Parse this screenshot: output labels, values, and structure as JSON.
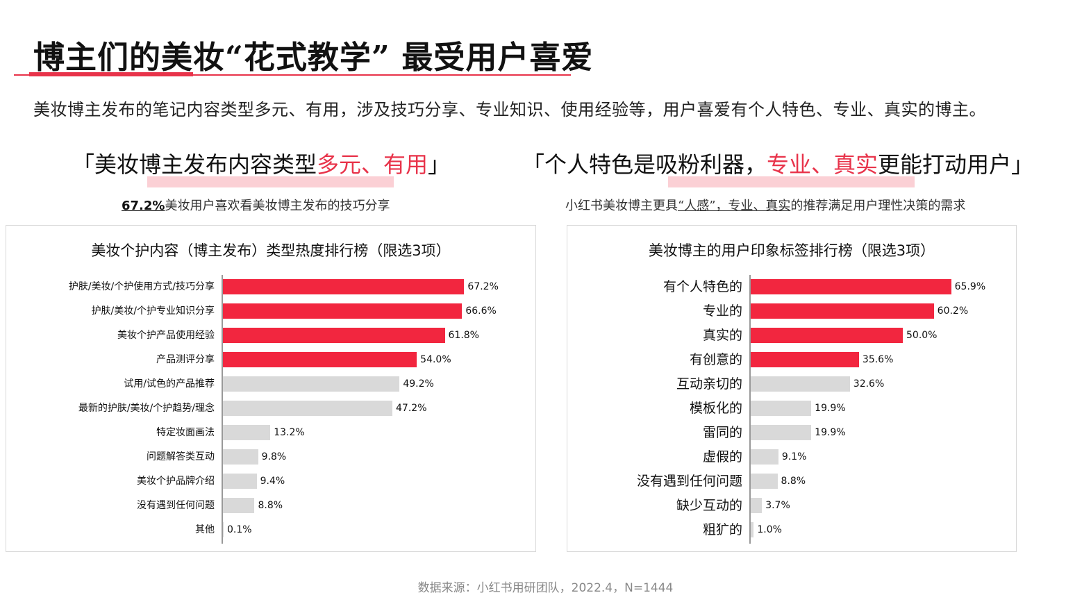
{
  "header": {
    "title": "博主们的美妆“花式教学” 最受用户喜爱",
    "subtitle": "美妆博主发布的笔记内容类型多元、有用，涉及技巧分享、专业知识、使用经验等，用户喜爱有个人特色、专业、真实的博主。"
  },
  "colors": {
    "accent": "#f2263f",
    "highlight_bg": "#fbd0d5",
    "bar_gray": "#d9d9d9",
    "title_line": "#e8334a"
  },
  "left_section": {
    "heading_pre": "「美妆博主发布内容类型",
    "heading_hl": "多元、有用",
    "heading_post": "」",
    "sub_bold": "67.2%",
    "sub_text": "美妆用户喜欢看美妆博主发布的技巧分享"
  },
  "right_section": {
    "heading_pre": "「个人特色是吸粉利器，",
    "heading_hl": "专业、真实",
    "heading_post": "更能打动用户」",
    "sub_pre": "小红书美妆博主更具",
    "sub_underlined": "“人感”，专业、真实",
    "sub_post": "的推荐满足用户理性决策的需求"
  },
  "footer": {
    "source": "数据来源：小红书用研团队，2022.4，N=1444"
  },
  "chart_data": [
    {
      "type": "bar",
      "orientation": "horizontal",
      "title": "美妆个护内容（博主发布）类型热度排行榜（限选3项）",
      "xlabel": "",
      "ylabel": "",
      "unit": "%",
      "categories": [
        "护肤/美妆/个护使用方式/技巧分享",
        "护肤/美妆/个护专业知识分享",
        "美妆个护产品使用经验",
        "产品测评分享",
        "试用/试色的产品推荐",
        "最新的护肤/美妆/个护趋势/理念",
        "特定妆面画法",
        "问题解答类互动",
        "美妆个护品牌介绍",
        "没有遇到任何问题",
        "其他"
      ],
      "values": [
        67.2,
        66.6,
        61.8,
        54.0,
        49.2,
        47.2,
        13.2,
        9.8,
        9.4,
        8.8,
        0.1
      ],
      "labels": [
        "67.2%",
        "66.6%",
        "61.8%",
        "54.0%",
        "49.2%",
        "47.2%",
        "13.2%",
        "9.8%",
        "9.4%",
        "8.8%",
        "0.1%"
      ],
      "highlighted": [
        true,
        true,
        true,
        true,
        false,
        false,
        false,
        false,
        false,
        false,
        false
      ],
      "grid": false,
      "legend": "none"
    },
    {
      "type": "bar",
      "orientation": "horizontal",
      "title": "美妆博主的用户印象标签排行榜（限选3项）",
      "xlabel": "",
      "ylabel": "",
      "unit": "%",
      "categories": [
        "有个人特色的",
        "专业的",
        "真实的",
        "有创意的",
        "互动亲切的",
        "模板化的",
        "雷同的",
        "虚假的",
        "没有遇到任何问题",
        "缺少互动的",
        "粗犷的"
      ],
      "values": [
        65.9,
        60.2,
        50.0,
        35.6,
        32.6,
        19.9,
        19.9,
        9.1,
        8.8,
        3.7,
        1.0
      ],
      "labels": [
        "65.9%",
        "60.2%",
        "50.0%",
        "35.6%",
        "32.6%",
        "19.9%",
        "19.9%",
        "9.1%",
        "8.8%",
        "3.7%",
        "1.0%"
      ],
      "highlighted": [
        true,
        true,
        true,
        true,
        false,
        false,
        false,
        false,
        false,
        false,
        false
      ],
      "grid": false,
      "legend": "none"
    }
  ]
}
